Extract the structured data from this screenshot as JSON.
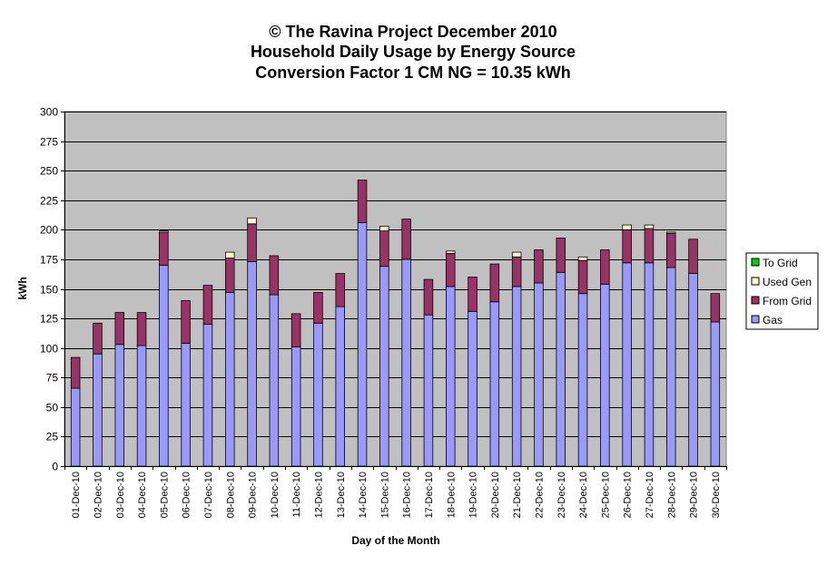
{
  "chart_data": {
    "type": "bar",
    "stacked": true,
    "title_lines": [
      "© The Ravina Project December 2010",
      "Household Daily Usage by Energy Source",
      "Conversion Factor 1 CM NG = 10.35 kWh"
    ],
    "xlabel": "Day of the Month",
    "ylabel": "kWh",
    "ylim": [
      0,
      300
    ],
    "yticks": [
      0,
      25,
      50,
      75,
      100,
      125,
      150,
      175,
      200,
      225,
      250,
      275,
      300
    ],
    "grid": true,
    "legend_position": "right",
    "categories": [
      "01-Dec-10",
      "02-Dec-10",
      "03-Dec-10",
      "04-Dec-10",
      "05-Dec-10",
      "06-Dec-10",
      "07-Dec-10",
      "08-Dec-10",
      "09-Dec-10",
      "10-Dec-10",
      "11-Dec-10",
      "12-Dec-10",
      "13-Dec-10",
      "14-Dec-10",
      "15-Dec-10",
      "16-Dec-10",
      "17-Dec-10",
      "18-Dec-10",
      "19-Dec-10",
      "20-Dec-10",
      "21-Dec-10",
      "22-Dec-10",
      "23-Dec-10",
      "24-Dec-10",
      "25-Dec-10",
      "26-Dec-10",
      "27-Dec-10",
      "28-Dec-10",
      "29-Dec-10",
      "30-Dec-10"
    ],
    "series": [
      {
        "name": "Gas",
        "color": "#9999ff",
        "values": [
          66,
          95,
          103,
          102,
          170,
          104,
          120,
          147,
          173,
          145,
          101,
          121,
          135,
          206,
          169,
          175,
          128,
          152,
          131,
          139,
          152,
          155,
          164,
          146,
          154,
          172,
          172,
          168,
          163,
          122
        ]
      },
      {
        "name": "From Grid",
        "color": "#993366",
        "values": [
          26,
          26,
          27,
          28,
          28,
          36,
          33,
          29,
          32,
          33,
          28,
          26,
          28,
          36,
          30,
          34,
          30,
          28,
          29,
          32,
          25,
          28,
          29,
          28,
          29,
          28,
          29,
          29,
          29,
          24
        ]
      },
      {
        "name": "Used Gen",
        "color": "#ffffcc",
        "values": [
          0,
          0,
          0,
          0,
          1,
          0,
          0,
          5,
          5,
          0,
          0,
          0,
          0,
          0,
          4,
          0,
          0,
          2,
          0,
          0,
          4,
          0,
          0,
          3,
          0,
          4,
          3,
          1,
          0,
          0
        ]
      },
      {
        "name": "To Grid",
        "color": "#00cc00",
        "values": [
          0,
          0,
          0,
          0,
          0,
          0,
          0,
          0,
          0,
          0,
          0,
          0,
          0,
          0,
          0,
          0,
          0,
          0,
          0,
          0,
          0,
          0,
          0,
          0,
          0,
          0,
          0,
          0,
          0,
          0
        ]
      }
    ],
    "legend": [
      "To Grid",
      "Used Gen",
      "From Grid",
      "Gas"
    ],
    "plot_background": "#c0c0c0"
  }
}
